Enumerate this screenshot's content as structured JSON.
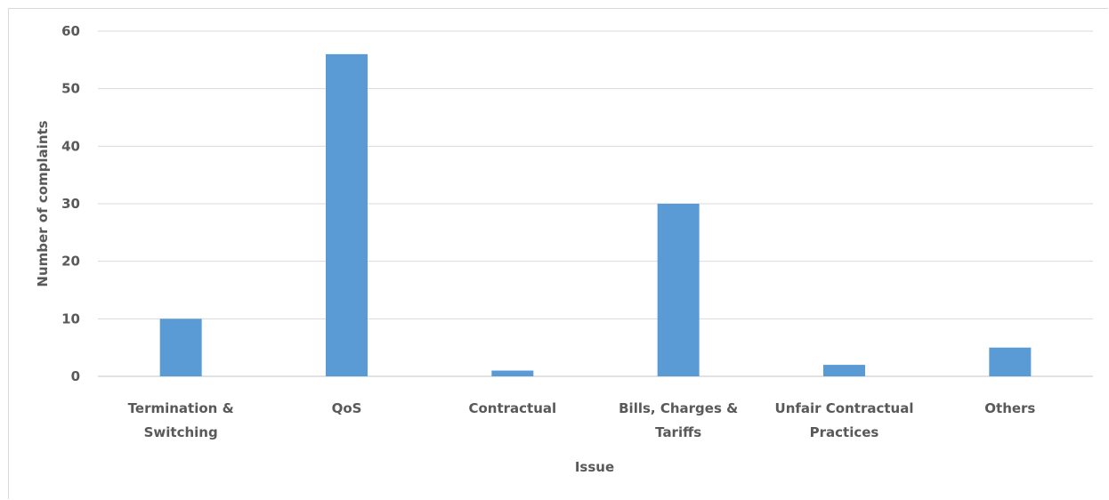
{
  "chart_data": {
    "type": "bar",
    "categories": [
      [
        "Termination &",
        "Switching"
      ],
      [
        "QoS"
      ],
      [
        "Contractual"
      ],
      [
        "Bills, Charges &",
        "Tariffs"
      ],
      [
        "Unfair Contractual",
        "Practices"
      ],
      [
        "Others"
      ]
    ],
    "values": [
      10,
      56,
      1,
      30,
      2,
      5
    ],
    "title": "",
    "xlabel": "Issue",
    "ylabel": "Number of complaints",
    "ylim": [
      0,
      60
    ],
    "yticks": [
      0,
      10,
      20,
      30,
      40,
      50,
      60
    ],
    "grid": true,
    "legend": "none",
    "colors": {
      "bar": "#5b9bd5",
      "grid": "#d9d9d9",
      "text": "#595959"
    }
  }
}
